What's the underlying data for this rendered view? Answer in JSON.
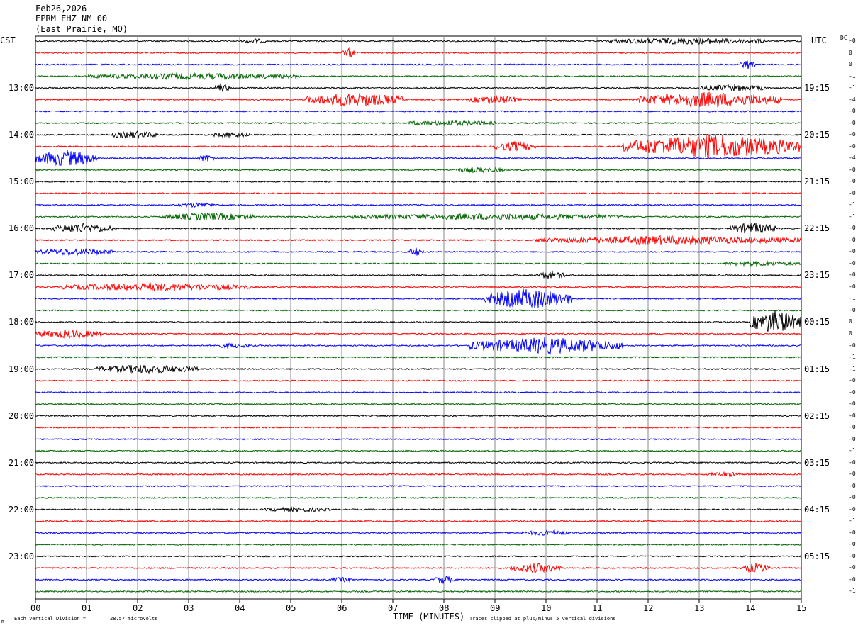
{
  "header": {
    "date": "Feb26,2026",
    "station": "EPRM EHZ NM 00",
    "location": "(East Prairie, MO)"
  },
  "left_timezone": "CST",
  "right_timezone": "UTC",
  "dc_label": "DC",
  "footer": {
    "scale_label": "Each Vertical Division =",
    "scale_value": "28.57 microvolts",
    "clip_note": "Traces clipped at plus/minus 5 vertical divisions",
    "corner_mark": "m"
  },
  "chart_data": {
    "type": "line",
    "title": "",
    "xlabel": "TIME (MINUTES)",
    "ylabel": "",
    "xlim": [
      0,
      15
    ],
    "x_ticks": [
      "00",
      "01",
      "02",
      "03",
      "04",
      "05",
      "06",
      "07",
      "08",
      "09",
      "10",
      "11",
      "12",
      "13",
      "14",
      "15"
    ],
    "trace_count": 48,
    "trace_minutes": 15,
    "trace_colors": [
      "#000000",
      "#ff0000",
      "#0000ff",
      "#006400"
    ],
    "left_hour_labels": [
      "13:00",
      "14:00",
      "15:00",
      "16:00",
      "17:00",
      "18:00",
      "19:00",
      "20:00",
      "21:00",
      "22:00",
      "23:00"
    ],
    "right_hour_labels": [
      "19:15",
      "20:15",
      "21:15",
      "22:15",
      "23:15",
      "00:15",
      "01:15",
      "02:15",
      "03:15",
      "04:15",
      "05:15"
    ],
    "first_hour_trace_index": 4,
    "dc_offsets": [
      "-0",
      "0",
      "0",
      "-1",
      "-1",
      "-4",
      "-0",
      "-0",
      "-0",
      "-0",
      "-4",
      "-0",
      "-0",
      "-0",
      "-1",
      "-1",
      "-0",
      "-0",
      "-0",
      "-0",
      "-0",
      "-0",
      "-1",
      "-0",
      "0",
      "0",
      "-0",
      "-1",
      "-1",
      "-0",
      "-0",
      "-0",
      "-0",
      "-0",
      "-0",
      "-1",
      "-0",
      "-0",
      "-0",
      "-0",
      "-0",
      "-1",
      "-0",
      "-0",
      "-0",
      "-0",
      "-0",
      "-1"
    ],
    "events": [
      {
        "trace": 0,
        "start": 11.2,
        "end": 14.3,
        "amp": 0.35
      },
      {
        "trace": 0,
        "start": 4.1,
        "end": 4.5,
        "amp": 0.25
      },
      {
        "trace": 1,
        "start": 6.0,
        "end": 6.3,
        "amp": 0.5
      },
      {
        "trace": 2,
        "start": 13.8,
        "end": 14.1,
        "amp": 0.6
      },
      {
        "trace": 3,
        "start": 1.0,
        "end": 5.2,
        "amp": 0.35
      },
      {
        "trace": 4,
        "start": 3.5,
        "end": 3.8,
        "amp": 0.5
      },
      {
        "trace": 4,
        "start": 13.0,
        "end": 14.3,
        "amp": 0.35
      },
      {
        "trace": 5,
        "start": 5.3,
        "end": 7.2,
        "amp": 0.85
      },
      {
        "trace": 5,
        "start": 8.5,
        "end": 9.5,
        "amp": 0.5
      },
      {
        "trace": 5,
        "start": 11.8,
        "end": 14.6,
        "amp": 0.95
      },
      {
        "trace": 7,
        "start": 7.3,
        "end": 9.0,
        "amp": 0.3
      },
      {
        "trace": 8,
        "start": 1.5,
        "end": 2.4,
        "amp": 0.45
      },
      {
        "trace": 8,
        "start": 3.5,
        "end": 4.2,
        "amp": 0.3
      },
      {
        "trace": 9,
        "start": 9.0,
        "end": 9.8,
        "amp": 0.6
      },
      {
        "trace": 9,
        "start": 11.5,
        "end": 15.0,
        "amp": 1.5
      },
      {
        "trace": 10,
        "start": 0.0,
        "end": 1.2,
        "amp": 1.0
      },
      {
        "trace": 10,
        "start": 3.2,
        "end": 3.5,
        "amp": 0.45
      },
      {
        "trace": 11,
        "start": 8.2,
        "end": 9.2,
        "amp": 0.3
      },
      {
        "trace": 14,
        "start": 2.8,
        "end": 3.5,
        "amp": 0.25
      },
      {
        "trace": 15,
        "start": 2.5,
        "end": 4.3,
        "amp": 0.45
      },
      {
        "trace": 15,
        "start": 6.2,
        "end": 11.5,
        "amp": 0.35
      },
      {
        "trace": 16,
        "start": 0.3,
        "end": 1.5,
        "amp": 0.6
      },
      {
        "trace": 16,
        "start": 13.6,
        "end": 14.5,
        "amp": 0.7
      },
      {
        "trace": 17,
        "start": 9.8,
        "end": 15.0,
        "amp": 0.5
      },
      {
        "trace": 18,
        "start": 0.0,
        "end": 1.5,
        "amp": 0.4
      },
      {
        "trace": 18,
        "start": 7.3,
        "end": 7.6,
        "amp": 0.5
      },
      {
        "trace": 19,
        "start": 13.5,
        "end": 15.0,
        "amp": 0.25
      },
      {
        "trace": 20,
        "start": 9.8,
        "end": 10.4,
        "amp": 0.4
      },
      {
        "trace": 21,
        "start": 0.5,
        "end": 4.2,
        "amp": 0.45
      },
      {
        "trace": 22,
        "start": 8.8,
        "end": 10.5,
        "amp": 1.3
      },
      {
        "trace": 24,
        "start": 14.0,
        "end": 15.0,
        "amp": 1.5
      },
      {
        "trace": 25,
        "start": 0.0,
        "end": 1.3,
        "amp": 0.5
      },
      {
        "trace": 26,
        "start": 3.5,
        "end": 4.2,
        "amp": 0.25
      },
      {
        "trace": 26,
        "start": 8.5,
        "end": 11.5,
        "amp": 1.0
      },
      {
        "trace": 28,
        "start": 1.2,
        "end": 3.2,
        "amp": 0.5
      },
      {
        "trace": 37,
        "start": 13.2,
        "end": 13.8,
        "amp": 0.25
      },
      {
        "trace": 40,
        "start": 4.5,
        "end": 5.8,
        "amp": 0.25
      },
      {
        "trace": 42,
        "start": 9.5,
        "end": 10.5,
        "amp": 0.25
      },
      {
        "trace": 45,
        "start": 9.3,
        "end": 10.3,
        "amp": 0.55
      },
      {
        "trace": 45,
        "start": 13.8,
        "end": 14.4,
        "amp": 0.55
      },
      {
        "trace": 46,
        "start": 7.8,
        "end": 8.2,
        "amp": 0.5
      },
      {
        "trace": 46,
        "start": 5.8,
        "end": 6.2,
        "amp": 0.25
      }
    ]
  }
}
